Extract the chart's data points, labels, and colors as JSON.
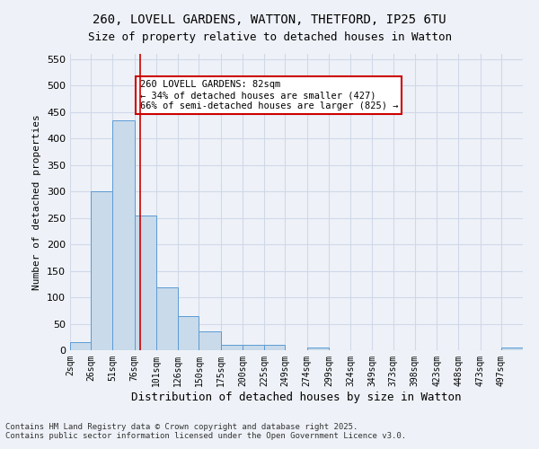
{
  "title_line1": "260, LOVELL GARDENS, WATTON, THETFORD, IP25 6TU",
  "title_line2": "Size of property relative to detached houses in Watton",
  "xlabel": "Distribution of detached houses by size in Watton",
  "ylabel": "Number of detached properties",
  "categories": [
    "2sqm",
    "26sqm",
    "51sqm",
    "76sqm",
    "101sqm",
    "126sqm",
    "150sqm",
    "175sqm",
    "200sqm",
    "225sqm",
    "249sqm",
    "274sqm",
    "299sqm",
    "324sqm",
    "349sqm",
    "373sqm",
    "398sqm",
    "423sqm",
    "448sqm",
    "473sqm",
    "497sqm"
  ],
  "bar_values": [
    15,
    300,
    435,
    255,
    118,
    65,
    35,
    10,
    10,
    10,
    0,
    5,
    0,
    0,
    0,
    0,
    0,
    0,
    0,
    0,
    5
  ],
  "bar_color": "#c9daea",
  "bar_edge_color": "#5b9bd5",
  "grid_color": "#d0d8e8",
  "background_color": "#eef2f8",
  "annotation_text": "260 LOVELL GARDENS: 82sqm\n← 34% of detached houses are smaller (427)\n66% of semi-detached houses are larger (825) →",
  "annotation_box_color": "#ffffff",
  "annotation_box_edge": "#cc0000",
  "ref_line_x": 82,
  "ref_line_color": "#cc0000",
  "footer_line1": "Contains HM Land Registry data © Crown copyright and database right 2025.",
  "footer_line2": "Contains public sector information licensed under the Open Government Licence v3.0.",
  "ylim": [
    0,
    560
  ],
  "yticks": [
    0,
    50,
    100,
    150,
    200,
    250,
    300,
    350,
    400,
    450,
    500,
    550
  ],
  "bin_width": 25
}
